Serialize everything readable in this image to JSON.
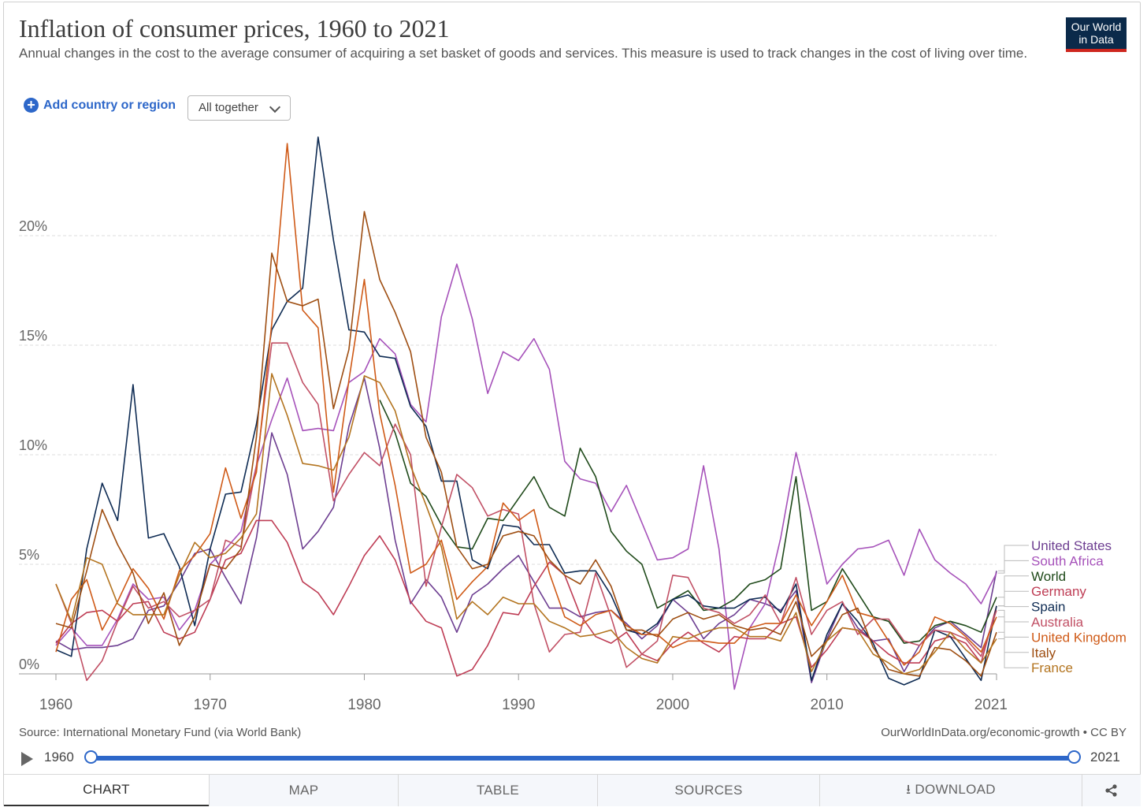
{
  "header": {
    "title": "Inflation of consumer prices, 1960 to 2021",
    "subtitle": "Annual changes in the cost to the average consumer of acquiring a set basket of goods and services. This measure is used to track changes in the cost of living over time.",
    "logo_line1": "Our World",
    "logo_line2": "in Data"
  },
  "controls": {
    "add_label": "Add country or region",
    "add_icon": "plus-circle-icon",
    "mode_label": "All together"
  },
  "footer": {
    "source": "Source: International Monetary Fund (via World Bank)",
    "credit": "OurWorldInData.org/economic-growth • CC BY"
  },
  "timeline": {
    "start_label": "1960",
    "end_label": "2021",
    "start_year": 1960,
    "end_year": 2021
  },
  "tabs": [
    {
      "label": "CHART",
      "active": true
    },
    {
      "label": "MAP"
    },
    {
      "label": "TABLE"
    },
    {
      "label": "SOURCES"
    },
    {
      "label": "⭳ DOWNLOAD"
    },
    {
      "label": "",
      "icon": "share-icon"
    }
  ],
  "chart_data": {
    "type": "line",
    "title": "Inflation of consumer prices, 1960 to 2021",
    "xlim": [
      1960,
      2021
    ],
    "ylim": [
      0,
      25
    ],
    "x_ticks": [
      1960,
      1970,
      1980,
      1990,
      2000,
      2010,
      2021
    ],
    "y_ticks": [
      0,
      5,
      10,
      15,
      20
    ],
    "y_tick_labels": [
      "0%",
      "5%",
      "10%",
      "15%",
      "20%"
    ],
    "grid": true,
    "legend": "right-end labels",
    "series": [
      {
        "name": "United States",
        "color": "#6d3e91",
        "start": 1960,
        "values": [
          1.5,
          1.1,
          1.2,
          1.2,
          1.3,
          1.6,
          2.9,
          3.1,
          4.2,
          5.5,
          5.7,
          4.4,
          3.2,
          6.2,
          11.0,
          9.1,
          5.7,
          6.5,
          7.6,
          11.3,
          13.5,
          10.3,
          6.1,
          3.2,
          4.3,
          3.5,
          1.9,
          3.6,
          4.1,
          4.8,
          5.4,
          4.2,
          3.0,
          3.0,
          2.6,
          2.8,
          2.9,
          2.3,
          1.6,
          2.2,
          3.4,
          2.8,
          1.6,
          2.3,
          2.7,
          3.4,
          3.2,
          2.9,
          3.8,
          -0.4,
          1.6,
          3.2,
          2.1,
          1.5,
          1.6,
          0.1,
          1.3,
          2.1,
          2.4,
          1.8,
          1.2,
          4.7
        ]
      },
      {
        "name": "South Africa",
        "color": "#a652ba",
        "start": 1960,
        "values": [
          1.3,
          2.1,
          1.3,
          1.3,
          2.5,
          4.1,
          3.4,
          3.5,
          2.0,
          2.9,
          5.0,
          5.7,
          6.5,
          9.5,
          11.6,
          13.5,
          11.1,
          11.2,
          11.1,
          13.3,
          13.8,
          15.3,
          14.6,
          12.3,
          11.5,
          16.3,
          18.7,
          16.2,
          12.8,
          14.7,
          14.3,
          15.3,
          13.9,
          9.7,
          8.9,
          8.7,
          7.4,
          8.6,
          6.9,
          5.2,
          5.3,
          5.7,
          9.5,
          5.7,
          -0.7,
          2.1,
          3.2,
          6.2,
          10.1,
          7.2,
          4.1,
          5.0,
          5.7,
          5.8,
          6.1,
          4.5,
          6.6,
          5.2,
          4.6,
          4.1,
          3.2,
          4.6
        ]
      },
      {
        "name": "World",
        "color": "#1f4a1a",
        "start": 1981,
        "values": [
          12.5,
          11.0,
          8.7,
          8.1,
          6.8,
          5.8,
          5.7,
          7.1,
          7.0,
          8.0,
          9.0,
          7.6,
          7.2,
          10.3,
          9.0,
          6.5,
          5.6,
          5.0,
          3.0,
          3.4,
          3.8,
          2.9,
          3.0,
          3.4,
          4.1,
          4.3,
          4.8,
          9.0,
          2.9,
          3.3,
          4.8,
          3.7,
          2.6,
          2.4,
          1.4,
          1.5,
          2.2,
          2.4,
          2.2,
          1.9,
          3.5
        ]
      },
      {
        "name": "Germany",
        "color": "#be3c54",
        "start": 1960,
        "values": [
          1.4,
          2.3,
          2.8,
          2.9,
          2.4,
          3.2,
          3.3,
          1.9,
          1.6,
          1.9,
          3.4,
          5.2,
          5.5,
          7.0,
          7.0,
          6.0,
          4.2,
          3.7,
          2.7,
          4.0,
          5.4,
          6.3,
          5.2,
          3.3,
          2.4,
          2.1,
          -0.1,
          0.2,
          1.3,
          2.8,
          2.7,
          4.0,
          5.1,
          4.5,
          2.7,
          1.7,
          1.4,
          1.9,
          0.9,
          0.6,
          1.4,
          1.9,
          1.4,
          1.0,
          1.7,
          1.6,
          1.6,
          2.3,
          2.6,
          0.3,
          1.1,
          2.1,
          2.0,
          1.5,
          0.9,
          0.5,
          0.5,
          1.5,
          1.7,
          1.4,
          0.5,
          3.1
        ]
      },
      {
        "name": "Spain",
        "color": "#0e2b53",
        "start": 1960,
        "values": [
          1.1,
          0.8,
          5.7,
          8.7,
          7.0,
          13.2,
          6.2,
          6.4,
          4.9,
          2.2,
          5.7,
          8.2,
          8.3,
          11.4,
          15.7,
          17.0,
          17.6,
          24.5,
          19.8,
          15.7,
          15.6,
          14.5,
          14.4,
          12.2,
          11.3,
          8.8,
          8.8,
          5.2,
          4.8,
          6.8,
          6.7,
          5.9,
          5.9,
          4.6,
          4.7,
          4.7,
          3.6,
          2.0,
          1.8,
          2.3,
          3.4,
          3.6,
          3.1,
          3.0,
          3.0,
          3.4,
          3.5,
          2.8,
          4.1,
          -0.3,
          1.8,
          3.2,
          2.4,
          1.4,
          -0.2,
          -0.5,
          -0.2,
          2.0,
          1.7,
          0.7,
          -0.3,
          3.1
        ]
      },
      {
        "name": "Australia",
        "color": "#c15065",
        "start": 1960,
        "values": [
          4.1,
          2.3,
          -0.3,
          0.6,
          2.4,
          4.0,
          3.0,
          3.3,
          2.6,
          2.9,
          3.4,
          6.1,
          5.8,
          9.5,
          15.1,
          15.1,
          13.3,
          12.3,
          7.9,
          9.1,
          10.1,
          9.5,
          11.4,
          10.0,
          4.0,
          6.7,
          9.1,
          8.5,
          7.2,
          7.5,
          7.3,
          3.2,
          1.0,
          1.8,
          1.9,
          4.6,
          2.6,
          0.3,
          0.9,
          1.5,
          4.5,
          4.4,
          3.0,
          2.8,
          2.3,
          2.7,
          3.6,
          2.3,
          4.4,
          1.8,
          2.9,
          3.3,
          1.8,
          2.5,
          2.5,
          1.5,
          1.3,
          2.0,
          1.9,
          1.6,
          0.8,
          2.9
        ]
      },
      {
        "name": "United Kingdom",
        "color": "#cf5a17",
        "start": 1960,
        "values": [
          1.0,
          3.4,
          4.3,
          2.0,
          3.3,
          4.8,
          3.9,
          2.5,
          4.7,
          5.4,
          6.4,
          9.4,
          7.1,
          9.2,
          16.0,
          24.2,
          16.6,
          15.8,
          8.3,
          13.4,
          18.0,
          11.9,
          8.6,
          4.6,
          5.0,
          6.1,
          3.4,
          4.2,
          4.9,
          7.8,
          7.0,
          7.5,
          4.6,
          2.6,
          2.2,
          2.7,
          2.9,
          2.2,
          1.8,
          1.8,
          1.2,
          1.5,
          1.5,
          1.4,
          1.4,
          2.1,
          2.3,
          2.3,
          3.6,
          2.2,
          3.3,
          4.5,
          2.8,
          2.6,
          1.5,
          0.4,
          1.0,
          2.6,
          2.3,
          1.7,
          1.0,
          2.6
        ]
      },
      {
        "name": "Italy",
        "color": "#9e4e12",
        "start": 1960,
        "values": [
          2.3,
          2.1,
          4.7,
          7.5,
          5.9,
          4.6,
          2.3,
          3.7,
          1.3,
          2.6,
          5.0,
          4.8,
          5.7,
          10.8,
          19.2,
          17.0,
          16.8,
          17.1,
          12.1,
          14.8,
          21.1,
          18.0,
          16.5,
          14.7,
          10.8,
          9.2,
          5.8,
          4.8,
          5.0,
          6.3,
          6.5,
          6.3,
          5.2,
          4.5,
          4.1,
          5.2,
          4.0,
          2.0,
          2.0,
          1.7,
          2.5,
          2.8,
          2.5,
          2.7,
          2.2,
          2.0,
          2.1,
          1.8,
          3.3,
          0.8,
          1.5,
          2.7,
          3.0,
          1.2,
          0.2,
          0.0,
          -0.1,
          1.2,
          1.1,
          0.6,
          -0.1,
          1.9
        ]
      },
      {
        "name": "France",
        "color": "#b3741f",
        "start": 1960,
        "values": [
          4.1,
          2.4,
          5.3,
          5.0,
          3.2,
          2.7,
          2.7,
          2.7,
          4.5,
          6.0,
          5.3,
          5.5,
          6.2,
          7.3,
          13.7,
          11.8,
          9.6,
          9.5,
          9.3,
          10.8,
          13.6,
          13.3,
          12.0,
          9.5,
          7.7,
          5.8,
          2.5,
          3.3,
          2.7,
          3.5,
          3.2,
          3.2,
          2.4,
          2.1,
          1.7,
          1.8,
          2.0,
          1.2,
          0.7,
          0.5,
          1.7,
          1.6,
          1.9,
          2.1,
          2.1,
          1.7,
          1.7,
          1.5,
          2.8,
          0.1,
          1.5,
          2.1,
          2.0,
          0.9,
          0.5,
          0.0,
          0.2,
          1.0,
          1.9,
          1.1,
          0.5,
          1.6
        ]
      }
    ]
  }
}
